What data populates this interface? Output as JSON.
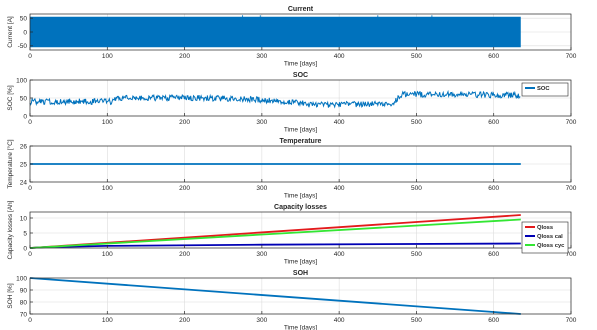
{
  "x_ticks": [
    "0",
    "100",
    "200",
    "300",
    "400",
    "500",
    "600",
    "700"
  ],
  "x_label": "Time [days]",
  "colors": {
    "blue": "#0072BD",
    "red": "#E31A1C",
    "navy": "#0000B4",
    "green": "#33E633",
    "axis": "#262626",
    "grid": "#DCDCDC"
  },
  "chart_data": [
    {
      "type": "area",
      "title": "Current",
      "xlabel": "Time [days]",
      "ylabel": "Current [A]",
      "xlim": [
        0,
        700
      ],
      "ylim": [
        -65,
        65
      ],
      "x_ticks": [
        0,
        100,
        200,
        300,
        400,
        500,
        600,
        700
      ],
      "y_ticks": [
        -50,
        0,
        50
      ],
      "grid": true,
      "series": [
        {
          "color": "#0072BD",
          "band": [
            [
              0,
              -55,
              55
            ],
            [
              635,
              -55,
              55
            ]
          ],
          "spikes": [
            [
              275,
              60
            ],
            [
              298,
              60
            ],
            [
              450,
              60
            ],
            [
              520,
              60
            ]
          ]
        }
      ]
    },
    {
      "type": "line",
      "title": "SOC",
      "xlabel": "Time [days]",
      "ylabel": "SOC [%]",
      "xlim": [
        0,
        700
      ],
      "ylim": [
        0,
        100
      ],
      "x_ticks": [
        0,
        100,
        200,
        300,
        400,
        500,
        600,
        700
      ],
      "y_ticks": [
        0,
        50,
        100
      ],
      "grid": true,
      "legend": "top-right",
      "series": [
        {
          "name": "SOC",
          "color": "#0072BD",
          "noisy": true,
          "noise": 8,
          "points": [
            [
              0,
              40
            ],
            [
              105,
              40
            ],
            [
              108,
              50
            ],
            [
              230,
              50
            ],
            [
              300,
              45
            ],
            [
              350,
              38
            ],
            [
              360,
              30
            ],
            [
              470,
              35
            ],
            [
              480,
              60
            ],
            [
              560,
              60
            ],
            [
              635,
              57
            ]
          ]
        }
      ]
    },
    {
      "type": "line",
      "title": "Temperature",
      "xlabel": "Time [days]",
      "ylabel": "Temperature [°C]",
      "xlim": [
        0,
        700
      ],
      "ylim": [
        24,
        26
      ],
      "x_ticks": [
        0,
        100,
        200,
        300,
        400,
        500,
        600,
        700
      ],
      "y_ticks": [
        24,
        25,
        26
      ],
      "grid": true,
      "series": [
        {
          "color": "#0072BD",
          "points": [
            [
              0,
              25
            ],
            [
              635,
              25
            ]
          ]
        }
      ]
    },
    {
      "type": "line",
      "title": "Capacity losses",
      "xlabel": "Time [days]",
      "ylabel": "Capacity losses [Ah]",
      "xlim": [
        0,
        700
      ],
      "ylim": [
        0,
        12
      ],
      "x_ticks": [
        0,
        100,
        200,
        300,
        400,
        500,
        600,
        700
      ],
      "y_ticks": [
        0,
        5,
        10
      ],
      "grid": true,
      "legend": "right",
      "series": [
        {
          "name": "Qloss",
          "color": "#E31A1C",
          "points": [
            [
              0,
              0
            ],
            [
              635,
              11
            ]
          ]
        },
        {
          "name": "Qloss cal",
          "color": "#0000B4",
          "points": [
            [
              0,
              0
            ],
            [
              20,
              0.3
            ],
            [
              100,
              0.7
            ],
            [
              300,
              1.1
            ],
            [
              635,
              1.5
            ]
          ]
        },
        {
          "name": "Qloss cyc",
          "color": "#33E633",
          "points": [
            [
              0,
              0
            ],
            [
              635,
              9.5
            ]
          ]
        }
      ]
    },
    {
      "type": "line",
      "title": "SOH",
      "xlabel": "Time [days]",
      "ylabel": "SOH [%]",
      "xlim": [
        0,
        700
      ],
      "ylim": [
        70,
        100
      ],
      "x_ticks": [
        0,
        100,
        200,
        300,
        400,
        500,
        600,
        700
      ],
      "y_ticks": [
        70,
        80,
        90,
        100
      ],
      "grid": true,
      "series": [
        {
          "color": "#0072BD",
          "points": [
            [
              0,
              100
            ],
            [
              635,
              70
            ]
          ]
        }
      ]
    }
  ]
}
